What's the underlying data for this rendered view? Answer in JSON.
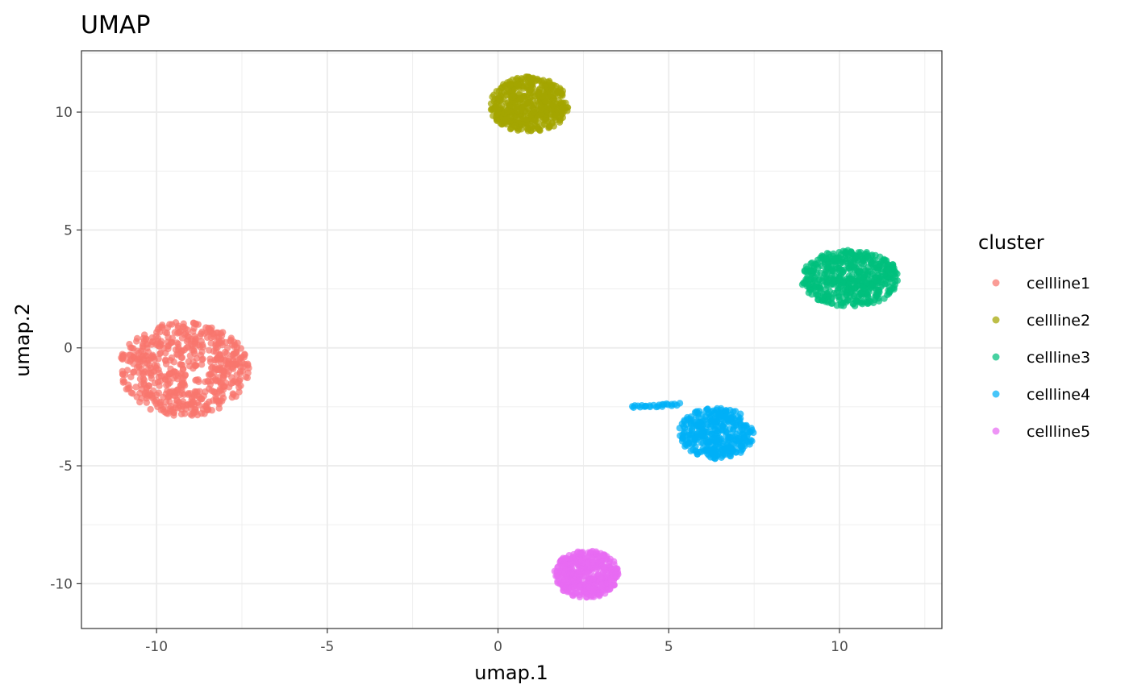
{
  "chart_data": {
    "type": "scatter",
    "title": "UMAP",
    "xlabel": "umap.1",
    "ylabel": "umap.2",
    "xlim": [
      -12.2,
      13
    ],
    "ylim": [
      -11.9,
      12.6
    ],
    "x_ticks": [
      -10,
      -5,
      0,
      5,
      10
    ],
    "y_ticks": [
      -10,
      -5,
      0,
      5,
      10
    ],
    "x_tick_labels": [
      "-10",
      "-5",
      "0",
      "5",
      "10"
    ],
    "y_tick_labels": [
      "-10",
      "-5",
      "0",
      "5",
      "10"
    ],
    "grid": true,
    "legend": {
      "title": "cluster",
      "position": "right"
    },
    "series": [
      {
        "name": "cellline1",
        "color": "#F8766D",
        "center": [
          -9.2,
          -0.9
        ],
        "spread": [
          1.9,
          2.0
        ],
        "n": 600
      },
      {
        "name": "cellline2",
        "color": "#A3A500",
        "center": [
          0.9,
          10.3
        ],
        "spread": [
          1.15,
          1.2
        ],
        "n": 500
      },
      {
        "name": "cellline3",
        "color": "#00BF7D",
        "center": [
          10.3,
          2.95
        ],
        "spread": [
          1.45,
          1.2
        ],
        "n": 500
      },
      {
        "name": "cellline4",
        "color": "#00B0F6",
        "center": [
          6.4,
          -3.6
        ],
        "spread": [
          1.1,
          1.1
        ],
        "n": 350,
        "tail": {
          "from": [
            3.9,
            -2.5
          ],
          "to": [
            5.3,
            -2.4
          ],
          "n": 25
        }
      },
      {
        "name": "cellline5",
        "color": "#E76BF3",
        "center": [
          2.6,
          -9.6
        ],
        "spread": [
          0.95,
          1.0
        ],
        "n": 450
      }
    ]
  }
}
